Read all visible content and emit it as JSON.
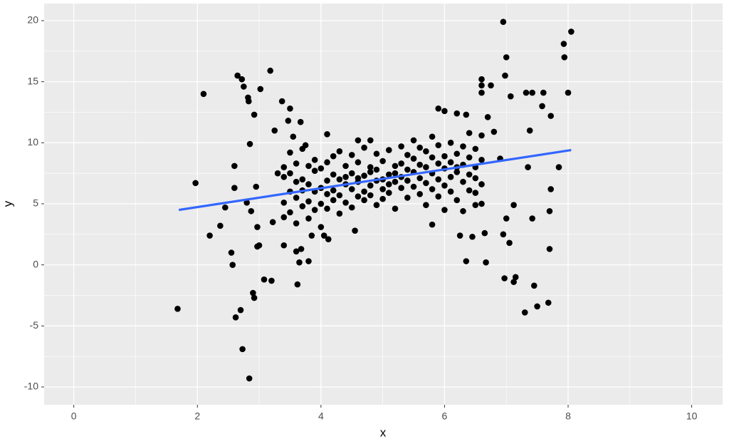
{
  "chart_data": {
    "type": "scatter",
    "x_label": "x",
    "y_label": "y",
    "xlim": [
      -0.48,
      10.5
    ],
    "ylim": [
      -11.46,
      21.4
    ],
    "xticks": [
      0,
      2,
      4,
      6,
      8,
      10
    ],
    "yticks": [
      -10,
      -5,
      0,
      5,
      10,
      15,
      20
    ],
    "xminor": [
      1,
      3,
      5,
      7,
      9
    ],
    "yminor": [
      -7.5,
      -2.5,
      2.5,
      7.5,
      12.5,
      17.5
    ],
    "grid": true,
    "color": "#000000",
    "x": [
      1.68,
      1.97,
      2.1,
      2.2,
      2.37,
      2.45,
      2.55,
      2.57,
      2.6,
      2.6,
      2.62,
      2.65,
      2.7,
      2.72,
      2.73,
      2.75,
      2.8,
      2.82,
      2.83,
      2.84,
      2.85,
      2.87,
      2.9,
      2.92,
      2.92,
      2.95,
      2.97,
      2.97,
      3.0,
      3.02,
      3.08,
      3.18,
      3.2,
      3.22,
      3.25,
      3.3,
      3.37,
      3.4,
      3.47,
      3.5,
      3.55,
      3.6,
      3.62,
      3.65,
      3.67,
      3.68,
      3.75,
      3.8,
      3.85,
      4.05,
      4.1,
      4.12,
      4.55,
      4.6,
      4.8,
      5.8,
      5.9,
      6.0,
      6.2,
      6.25,
      6.35,
      6.35,
      6.45,
      6.6,
      6.6,
      6.6,
      6.65,
      6.67,
      6.7,
      6.75,
      6.8,
      6.95,
      6.97,
      6.98,
      7.0,
      7.0,
      7.05,
      7.07,
      7.12,
      7.15,
      7.12,
      7.3,
      7.32,
      7.35,
      7.38,
      7.42,
      7.42,
      7.45,
      7.5,
      7.58,
      7.6,
      7.68,
      7.7,
      7.7,
      7.72,
      7.72,
      7.85,
      7.93,
      7.94,
      8.0,
      8.05,
      6.95,
      6.9,
      6.5,
      3.4,
      3.4,
      3.4,
      3.4,
      3.5,
      3.5,
      3.5,
      3.5,
      3.6,
      3.6,
      3.6,
      3.6,
      3.7,
      3.7,
      3.7,
      3.7,
      3.8,
      3.8,
      3.8,
      3.8,
      3.9,
      3.9,
      3.9,
      3.9,
      4.0,
      4.0,
      4.0,
      4.0,
      4.1,
      4.1,
      4.1,
      4.1,
      4.2,
      4.2,
      4.2,
      4.2,
      4.3,
      4.3,
      4.3,
      4.3,
      4.4,
      4.4,
      4.4,
      4.4,
      4.5,
      4.5,
      4.5,
      4.5,
      4.6,
      4.6,
      4.6,
      4.6,
      4.7,
      4.7,
      4.7,
      4.7,
      4.8,
      4.8,
      4.8,
      4.8,
      4.9,
      4.9,
      4.9,
      4.9,
      5.0,
      5.0,
      5.0,
      5.0,
      5.1,
      5.1,
      5.1,
      5.1,
      5.2,
      5.2,
      5.2,
      5.2,
      5.3,
      5.3,
      5.3,
      5.3,
      5.4,
      5.4,
      5.4,
      5.4,
      5.5,
      5.5,
      5.5,
      5.5,
      5.6,
      5.6,
      5.6,
      5.6,
      5.7,
      5.7,
      5.7,
      5.7,
      5.8,
      5.8,
      5.8,
      5.8,
      5.9,
      5.9,
      5.9,
      5.9,
      6.0,
      6.0,
      6.0,
      6.0,
      6.1,
      6.1,
      6.1,
      6.1,
      6.2,
      6.2,
      6.2,
      6.2,
      6.3,
      6.3,
      6.3,
      6.3,
      6.4,
      6.4,
      6.4,
      6.4,
      6.5,
      6.5,
      6.5,
      6.5,
      6.6,
      6.6,
      6.6,
      6.6
    ],
    "values": [
      -3.6,
      6.7,
      14,
      2.4,
      3.2,
      4.7,
      1,
      0,
      8.1,
      6.3,
      -4.3,
      15.5,
      -3.7,
      15.2,
      -6.9,
      14.6,
      5.1,
      13.7,
      13.4,
      -9.3,
      9.9,
      4.4,
      -2.3,
      -2.7,
      12.3,
      6.4,
      3.1,
      1.5,
      1.6,
      14.4,
      -1.2,
      15.9,
      -1.3,
      3.5,
      11,
      7.5,
      13.4,
      1.6,
      11.8,
      12.8,
      10.5,
      1.1,
      -1.6,
      0.2,
      11.7,
      1.3,
      9.8,
      0.3,
      2.4,
      2.4,
      10.7,
      2.1,
      2.8,
      10.2,
      10.2,
      3.3,
      12.8,
      12.6,
      12.4,
      2.4,
      0.3,
      12.3,
      2.3,
      15.2,
      14.7,
      14.1,
      2.6,
      0.2,
      12.1,
      14.7,
      10.9,
      19.9,
      -1.1,
      15.5,
      17,
      3.8,
      1.8,
      13.8,
      -1.4,
      -1.0,
      4.9,
      -3.9,
      14.1,
      8,
      11,
      14.1,
      3.8,
      -1.7,
      -3.4,
      13,
      14.1,
      -3.1,
      1.3,
      4.4,
      6.2,
      12.2,
      8,
      18.1,
      17,
      14.1,
      19.1,
      2.5,
      8.7,
      4.9,
      7.2,
      5.1,
      8.0,
      3.9,
      6.0,
      4.3,
      9.2,
      7.5,
      5.5,
      8.3,
      3.4,
      6.8,
      7.0,
      4.8,
      9.5,
      6.1,
      5.2,
      8.1,
      6.6,
      3.8,
      7.7,
      4.5,
      6.0,
      8.6,
      6.3,
      5.0,
      7.9,
      3.1,
      8.4,
      6.9,
      4.6,
      5.8,
      6.1,
      7.4,
      5.3,
      8.9,
      5.7,
      7.0,
      9.3,
      4.2,
      6.6,
      8.1,
      5.1,
      7.2,
      7.5,
      6.2,
      4.7,
      9.0,
      6.8,
      5.6,
      8.4,
      7.1,
      7.3,
      6.0,
      9.6,
      5.3,
      6.5,
      8.0,
      5.7,
      7.6,
      7.8,
      6.9,
      4.9,
      9.1,
      7.0,
      8.5,
      6.2,
      5.4,
      7.4,
      6.6,
      9.4,
      5.9,
      8.1,
      6.8,
      7.5,
      4.6,
      7.2,
      9.7,
      6.3,
      8.3,
      6.9,
      7.8,
      5.5,
      9.0,
      7.6,
      8.7,
      6.4,
      10.2,
      7.1,
      8.2,
      5.8,
      9.6,
      8.0,
      6.7,
      9.3,
      4.9,
      7.5,
      8.8,
      6.2,
      10.5,
      8.3,
      7.0,
      9.8,
      5.6,
      7.9,
      8.9,
      6.5,
      4.5,
      8.4,
      7.2,
      10.0,
      6.0,
      7.6,
      9.1,
      5.3,
      8.0,
      8.2,
      6.8,
      9.7,
      4.4,
      7.4,
      8.8,
      6.1,
      10.8,
      8.0,
      9.5,
      5.9,
      7.1,
      8.6,
      6.6,
      10.6,
      5.0
    ],
    "fit": {
      "x": [
        1.7,
        8.05
      ],
      "y": [
        4.5,
        9.4
      ],
      "color": "#3366FF"
    }
  }
}
